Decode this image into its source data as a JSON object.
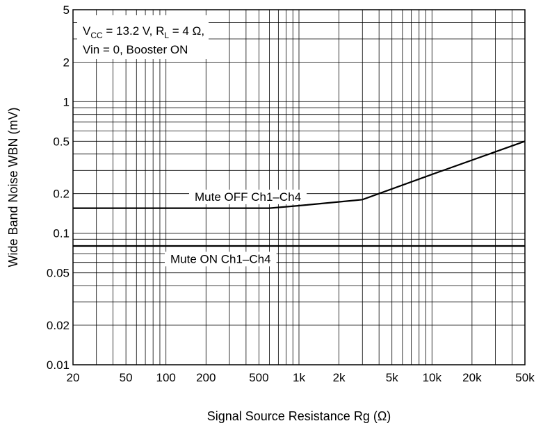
{
  "chart_data": {
    "type": "line",
    "title": "",
    "xlabel": "Signal Source Resistance  Rg  (Ω)",
    "ylabel": "Wide Band Noise  WBN  (mV)",
    "x_scale": "log",
    "y_scale": "log",
    "xlim": [
      20,
      50000
    ],
    "ylim": [
      0.01,
      5
    ],
    "grid": true,
    "x_ticks": [
      {
        "value": 20,
        "label": "20"
      },
      {
        "value": 50,
        "label": "50"
      },
      {
        "value": 100,
        "label": "100"
      },
      {
        "value": 200,
        "label": "200"
      },
      {
        "value": 500,
        "label": "500"
      },
      {
        "value": 1000,
        "label": "1k"
      },
      {
        "value": 2000,
        "label": "2k"
      },
      {
        "value": 5000,
        "label": "5k"
      },
      {
        "value": 10000,
        "label": "10k"
      },
      {
        "value": 20000,
        "label": "20k"
      },
      {
        "value": 50000,
        "label": "50k"
      }
    ],
    "y_ticks": [
      {
        "value": 0.01,
        "label": "0.01"
      },
      {
        "value": 0.02,
        "label": "0.02"
      },
      {
        "value": 0.05,
        "label": "0.05"
      },
      {
        "value": 0.1,
        "label": "0.1"
      },
      {
        "value": 0.2,
        "label": "0.2"
      },
      {
        "value": 0.5,
        "label": "0.5"
      },
      {
        "value": 1,
        "label": "1"
      },
      {
        "value": 2,
        "label": "2"
      },
      {
        "value": 5,
        "label": "5"
      }
    ],
    "conditions": {
      "line1": {
        "v": "V",
        "v_sub": "CC",
        "mid": " = 13.2 V, R",
        "r_sub": "L",
        "end": " = 4 Ω,"
      },
      "line2": "Vin = 0, Booster ON"
    },
    "series": [
      {
        "name": "Mute OFF Ch1–Ch4",
        "points": [
          [
            20,
            0.155
          ],
          [
            600,
            0.155
          ],
          [
            1000,
            0.162
          ],
          [
            3000,
            0.18
          ],
          [
            10000,
            0.28
          ],
          [
            50000,
            0.5
          ]
        ]
      },
      {
        "name": "Mute ON Ch1–Ch4",
        "points": [
          [
            20,
            0.08
          ],
          [
            50000,
            0.08
          ]
        ]
      }
    ]
  }
}
